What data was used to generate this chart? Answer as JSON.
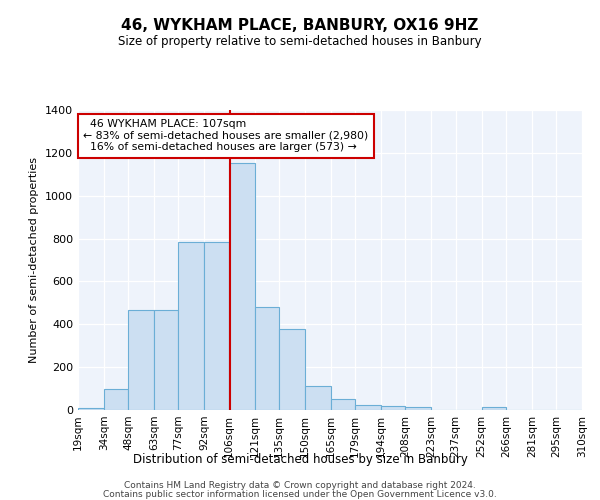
{
  "title": "46, WYKHAM PLACE, BANBURY, OX16 9HZ",
  "subtitle": "Size of property relative to semi-detached houses in Banbury",
  "xlabel": "Distribution of semi-detached houses by size in Banbury",
  "ylabel": "Number of semi-detached properties",
  "property_label": "46 WYKHAM PLACE: 107sqm",
  "pct_smaller": 83,
  "pct_smaller_n": "2,980",
  "pct_larger": 16,
  "pct_larger_n": "573",
  "bin_labels": [
    "19sqm",
    "34sqm",
    "48sqm",
    "63sqm",
    "77sqm",
    "92sqm",
    "106sqm",
    "121sqm",
    "135sqm",
    "150sqm",
    "165sqm",
    "179sqm",
    "194sqm",
    "208sqm",
    "223sqm",
    "237sqm",
    "252sqm",
    "266sqm",
    "281sqm",
    "295sqm",
    "310sqm"
  ],
  "bin_edges": [
    19,
    34,
    48,
    63,
    77,
    92,
    106,
    121,
    135,
    150,
    165,
    179,
    194,
    208,
    223,
    237,
    252,
    266,
    281,
    295,
    310
  ],
  "heights": [
    10,
    100,
    465,
    465,
    785,
    785,
    1155,
    480,
    380,
    110,
    50,
    25,
    18,
    15,
    0,
    0,
    15,
    0,
    0,
    0
  ],
  "bar_color": "#ccdff2",
  "bar_edge_color": "#6baed6",
  "vline_x": 107,
  "vline_color": "#cc0000",
  "annotation_box_color": "#cc0000",
  "background_color": "#eef3fb",
  "footer_line1": "Contains HM Land Registry data © Crown copyright and database right 2024.",
  "footer_line2": "Contains public sector information licensed under the Open Government Licence v3.0.",
  "ylim": [
    0,
    1400
  ],
  "yticks": [
    0,
    200,
    400,
    600,
    800,
    1000,
    1200,
    1400
  ]
}
